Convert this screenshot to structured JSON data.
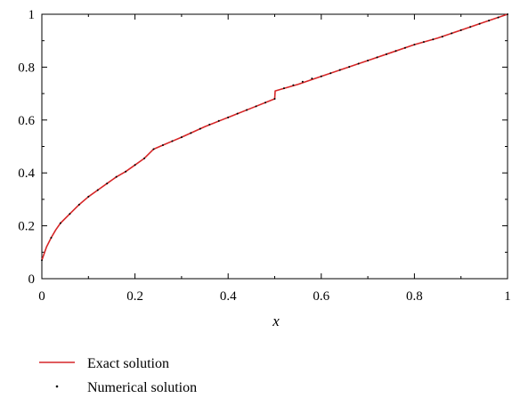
{
  "chart_data": {
    "type": "line",
    "title": "",
    "xlabel": "x",
    "ylabel": "",
    "xlim": [
      0,
      1
    ],
    "ylim": [
      0,
      1
    ],
    "x_ticks": [
      "0",
      "0.2",
      "0.4",
      "0.6",
      "0.8",
      "1"
    ],
    "y_ticks": [
      "0",
      "0.2",
      "0.4",
      "0.6",
      "0.8",
      "1"
    ],
    "grid": false,
    "legend_position": "bottom-left",
    "series": [
      {
        "name": "Exact solution",
        "style": "line",
        "color": "#d62728",
        "x": [
          0,
          0.01,
          0.02,
          0.03,
          0.04,
          0.06,
          0.08,
          0.1,
          0.12,
          0.14,
          0.16,
          0.18,
          0.2,
          0.22,
          0.24,
          0.26,
          0.28,
          0.3,
          0.35,
          0.4,
          0.45,
          0.5,
          0.501,
          0.55,
          0.6,
          0.65,
          0.7,
          0.75,
          0.8,
          0.85,
          0.9,
          0.95,
          1.0
        ],
        "y": [
          0.07,
          0.12,
          0.155,
          0.185,
          0.21,
          0.245,
          0.28,
          0.31,
          0.335,
          0.36,
          0.385,
          0.405,
          0.43,
          0.455,
          0.49,
          0.505,
          0.52,
          0.535,
          0.575,
          0.61,
          0.645,
          0.68,
          0.71,
          0.735,
          0.765,
          0.795,
          0.825,
          0.855,
          0.885,
          0.91,
          0.94,
          0.97,
          1.0
        ]
      },
      {
        "name": "Numerical solution",
        "style": "points",
        "color": "#000000",
        "x": [
          0,
          0.02,
          0.04,
          0.06,
          0.08,
          0.1,
          0.12,
          0.14,
          0.16,
          0.18,
          0.2,
          0.22,
          0.24,
          0.26,
          0.28,
          0.3,
          0.32,
          0.34,
          0.36,
          0.38,
          0.4,
          0.42,
          0.44,
          0.46,
          0.48,
          0.5,
          0.52,
          0.54,
          0.56,
          0.58,
          0.6,
          0.62,
          0.64,
          0.66,
          0.68,
          0.7,
          0.72,
          0.74,
          0.76,
          0.78,
          0.8,
          0.82,
          0.84,
          0.86,
          0.88,
          0.9,
          0.92,
          0.94,
          0.96,
          0.98,
          1.0
        ],
        "y": [
          0.07,
          0.155,
          0.21,
          0.245,
          0.28,
          0.31,
          0.335,
          0.36,
          0.385,
          0.405,
          0.43,
          0.455,
          0.49,
          0.505,
          0.52,
          0.535,
          0.551,
          0.567,
          0.583,
          0.597,
          0.61,
          0.624,
          0.638,
          0.652,
          0.666,
          0.68,
          0.72,
          0.732,
          0.745,
          0.757,
          0.765,
          0.777,
          0.789,
          0.801,
          0.813,
          0.825,
          0.837,
          0.849,
          0.861,
          0.873,
          0.885,
          0.895,
          0.905,
          0.915,
          0.928,
          0.94,
          0.952,
          0.964,
          0.976,
          0.988,
          1.0
        ]
      }
    ]
  }
}
